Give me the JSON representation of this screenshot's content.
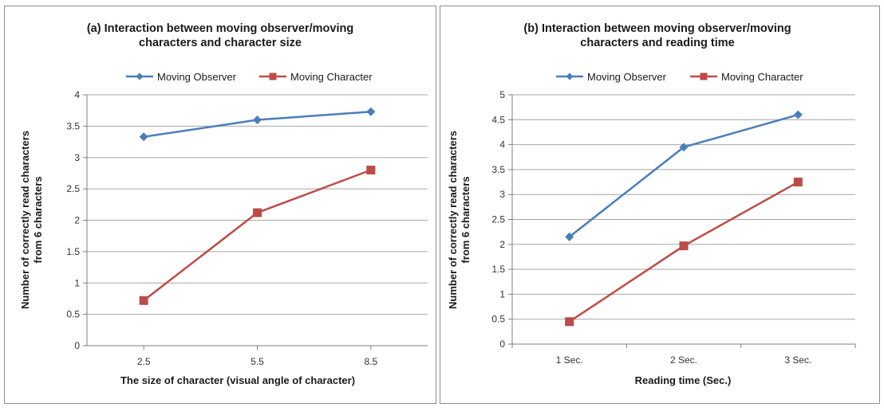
{
  "chart_data": [
    {
      "type": "line",
      "title_lines": [
        "(a) Interaction between moving observer/moving",
        "characters and character size"
      ],
      "xlabel": "The size of character (visual angle of character)",
      "ylabel_lines": [
        "Number of correctly read characters",
        "from 6 characters"
      ],
      "categories": [
        "2.5",
        "5.5",
        "8.5"
      ],
      "ylim": [
        0,
        4
      ],
      "yticks": [
        "0",
        "0.5",
        "1",
        "1.5",
        "2",
        "2.5",
        "3",
        "3.5",
        "4"
      ],
      "grid": true,
      "legend": "top",
      "series": [
        {
          "name": "Moving Observer",
          "values": [
            3.33,
            3.6,
            3.73
          ],
          "color": "#4a7ebb",
          "marker": "diamond"
        },
        {
          "name": "Moving Character",
          "values": [
            0.72,
            2.12,
            2.8
          ],
          "color": "#be4b48",
          "marker": "square"
        }
      ]
    },
    {
      "type": "line",
      "title_lines": [
        "(b) Interaction between moving observer/moving",
        "characters and reading time"
      ],
      "xlabel": "Reading time (Sec.)",
      "ylabel_lines": [
        "Number of correctly read characters",
        "from 6 characters"
      ],
      "categories": [
        "1 Sec.",
        "2 Sec.",
        "3 Sec."
      ],
      "ylim": [
        0,
        5
      ],
      "yticks": [
        "0",
        "0.5",
        "1",
        "1.5",
        "2",
        "2.5",
        "3",
        "3.5",
        "4",
        "4.5",
        "5"
      ],
      "grid": true,
      "legend": "top",
      "series": [
        {
          "name": "Moving Observer",
          "values": [
            2.15,
            3.95,
            4.6
          ],
          "color": "#4a7ebb",
          "marker": "diamond"
        },
        {
          "name": "Moving Character",
          "values": [
            0.45,
            1.97,
            3.25
          ],
          "color": "#be4b48",
          "marker": "square"
        }
      ]
    }
  ]
}
